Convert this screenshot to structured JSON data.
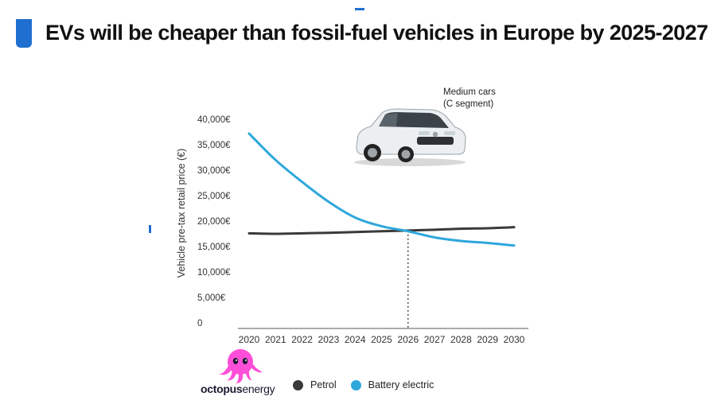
{
  "header": {
    "title": "EVs will be cheaper than fossil-fuel vehicles in Europe by 2025-2027"
  },
  "car_panel": {
    "line1": "Medium cars",
    "line2": "(C segment)"
  },
  "brand": {
    "name": "octopus energy",
    "name_part1": "octopus",
    "name_part2": "energy"
  },
  "colors": {
    "petrol": "#3a3a3a",
    "ev": "#2ea7dc",
    "accent": "#1f6fd1",
    "brand_pink": "#ff4fd8"
  },
  "chart_data": {
    "type": "line",
    "title": "EVs will be cheaper than fossil-fuel vehicles in Europe by 2025-2027",
    "ylabel": "Vehicle pre-tax retail price (€)",
    "xlabel": "",
    "x": [
      2020,
      2021,
      2022,
      2023,
      2024,
      2025,
      2026,
      2027,
      2028,
      2029,
      2030
    ],
    "x_tick_labels": [
      "2020",
      "2021",
      "2022",
      "2023",
      "2024",
      "2025",
      "2026",
      "2027",
      "2028",
      "2029",
      "2030"
    ],
    "ylim": [
      0,
      40000
    ],
    "y_tick_labels": [
      "0",
      "5,000€",
      "10,000€",
      "15,000€",
      "20,000€",
      "25,000€",
      "30,000€",
      "35,000€",
      "40,000€"
    ],
    "y_ticks": [
      0,
      5000,
      10000,
      15000,
      20000,
      25000,
      30000,
      35000,
      40000
    ],
    "series": [
      {
        "name": "Petrol",
        "key": "petrol",
        "values": [
          17600,
          17500,
          17600,
          17700,
          17850,
          18000,
          18150,
          18300,
          18500,
          18600,
          18800
        ]
      },
      {
        "name": "Battery electric",
        "key": "ev",
        "values": [
          37200,
          32000,
          27700,
          23800,
          20700,
          19000,
          18000,
          16800,
          16100,
          15700,
          15200
        ]
      }
    ],
    "crossover_year": 2026,
    "legend": "bottom"
  }
}
